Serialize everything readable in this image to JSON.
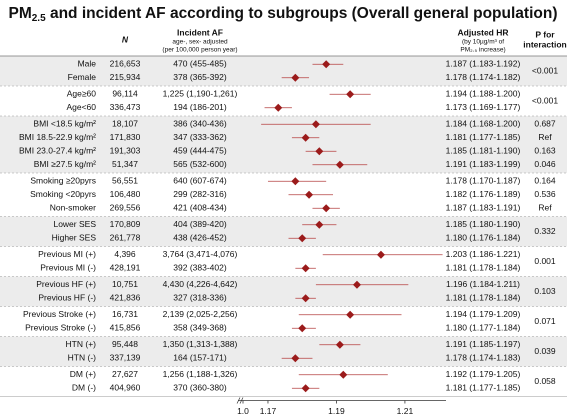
{
  "chart_data": {
    "type": "forest",
    "title_main": "PM",
    "title_sub": "2.5",
    "title_rest": " and incident AF according to subgroups (Overall general population)",
    "col_n": "N",
    "col_af": "Incident AF",
    "col_af_sub1": "age-, sex- adjusted",
    "col_af_sub2": "(per 100,000 person year)",
    "col_hr": "Adjusted HR",
    "col_hr_sub1": "(by 10µg/m³ of",
    "col_hr_sub2": "PM₂.₅ increase)",
    "col_p1": "P for",
    "col_p2": "interaction",
    "marker_color": "#9b1b1b",
    "ci_color": "#b54040",
    "shade_color": "#ececec",
    "xlim": [
      1.163,
      1.222
    ],
    "xticks": [
      {
        "value": 1.0,
        "label": "1.0"
      },
      1.17,
      1.19,
      1.21
    ],
    "groups": [
      {
        "p": "<0.001",
        "rows": [
          {
            "label": "Male",
            "n": "216,653",
            "af": "470 (455-485)",
            "hr_label": "1.187 (1.183-1.192)",
            "hr": 1.187,
            "lo": 1.183,
            "hi": 1.192
          },
          {
            "label": "Female",
            "n": "215,934",
            "af": "378 (365-392)",
            "hr_label": "1.178 (1.174-1.182)",
            "hr": 1.178,
            "lo": 1.174,
            "hi": 1.182
          }
        ]
      },
      {
        "p": "<0.001",
        "rows": [
          {
            "label": "Age≥60",
            "n": "96,114",
            "af": "1,225 (1,190-1,261)",
            "hr_label": "1.194 (1.188-1.200)",
            "hr": 1.194,
            "lo": 1.188,
            "hi": 1.2
          },
          {
            "label": "Age<60",
            "n": "336,473",
            "af": "194 (186-201)",
            "hr_label": "1.173 (1.169-1.177)",
            "hr": 1.173,
            "lo": 1.169,
            "hi": 1.177
          }
        ]
      },
      {
        "rows": [
          {
            "label": "BMI <18.5 kg/m²",
            "n": "18,107",
            "af": "386 (340-436)",
            "hr_label": "1.184 (1.168-1.200)",
            "hr": 1.184,
            "lo": 1.168,
            "hi": 1.2,
            "p": "0.687"
          },
          {
            "label": "BMI 18.5-22.9 kg/m²",
            "n": "171,830",
            "af": "347 (333-362)",
            "hr_label": "1.181 (1.177-1.185)",
            "hr": 1.181,
            "lo": 1.177,
            "hi": 1.185,
            "p": "Ref"
          },
          {
            "label": "BMI 23.0-27.4 kg/m²",
            "n": "191,303",
            "af": "459 (444-475)",
            "hr_label": "1.185 (1.181-1.190)",
            "hr": 1.185,
            "lo": 1.181,
            "hi": 1.19,
            "p": "0.163"
          },
          {
            "label": "BMI ≥27.5 kg/m²",
            "n": "51,347",
            "af": "565 (532-600)",
            "hr_label": "1.191 (1.183-1.199)",
            "hr": 1.191,
            "lo": 1.183,
            "hi": 1.199,
            "p": "0.046"
          }
        ]
      },
      {
        "rows": [
          {
            "label": "Smoking ≥20pyrs",
            "n": "56,551",
            "af": "640 (607-674)",
            "hr_label": "1.178 (1.170-1.187)",
            "hr": 1.178,
            "lo": 1.17,
            "hi": 1.187,
            "p": "0.164"
          },
          {
            "label": "Smoking <20pyrs",
            "n": "106,480",
            "af": "299 (282-316)",
            "hr_label": "1.182 (1.176-1.189)",
            "hr": 1.182,
            "lo": 1.176,
            "hi": 1.189,
            "p": "0.536"
          },
          {
            "label": "Non-smoker",
            "n": "269,556",
            "af": "421 (408-434)",
            "hr_label": "1.187 (1.183-1.191)",
            "hr": 1.187,
            "lo": 1.183,
            "hi": 1.191,
            "p": "Ref"
          }
        ]
      },
      {
        "p": "0.332",
        "rows": [
          {
            "label": "Lower SES",
            "n": "170,809",
            "af": "404 (389-420)",
            "hr_label": "1.185 (1.180-1.190)",
            "hr": 1.185,
            "lo": 1.18,
            "hi": 1.19
          },
          {
            "label": "Higher SES",
            "n": "261,778",
            "af": "438 (426-452)",
            "hr_label": "1.180 (1.176-1.184)",
            "hr": 1.18,
            "lo": 1.176,
            "hi": 1.184
          }
        ]
      },
      {
        "p": "0.001",
        "rows": [
          {
            "label": "Previous MI (+)",
            "n": "4,396",
            "af": "3,764 (3,471-4,076)",
            "hr_label": "1.203 (1.186-1.221)",
            "hr": 1.203,
            "lo": 1.186,
            "hi": 1.221
          },
          {
            "label": "Previous MI (-)",
            "n": "428,191",
            "af": "392 (383-402)",
            "hr_label": "1.181 (1.178-1.184)",
            "hr": 1.181,
            "lo": 1.178,
            "hi": 1.184
          }
        ]
      },
      {
        "p": "0.103",
        "rows": [
          {
            "label": "Previous HF (+)",
            "n": "10,751",
            "af": "4,430 (4,226-4,642)",
            "hr_label": "1.196 (1.184-1.211)",
            "hr": 1.196,
            "lo": 1.184,
            "hi": 1.211
          },
          {
            "label": "Previous HF (-)",
            "n": "421,836",
            "af": "327 (318-336)",
            "hr_label": "1.181 (1.178-1.184)",
            "hr": 1.181,
            "lo": 1.178,
            "hi": 1.184
          }
        ]
      },
      {
        "p": "0.071",
        "rows": [
          {
            "label": "Previous Stroke (+)",
            "n": "16,731",
            "af": "2,139 (2,025-2,256)",
            "hr_label": "1.194 (1.179-1.209)",
            "hr": 1.194,
            "lo": 1.179,
            "hi": 1.209
          },
          {
            "label": "Previous Stroke (-)",
            "n": "415,856",
            "af": "358 (349-368)",
            "hr_label": "1.180 (1.177-1.184)",
            "hr": 1.18,
            "lo": 1.177,
            "hi": 1.184
          }
        ]
      },
      {
        "p": "0.039",
        "rows": [
          {
            "label": "HTN (+)",
            "n": "95,448",
            "af": "1,350 (1,313-1,388)",
            "hr_label": "1.191 (1.185-1.197)",
            "hr": 1.191,
            "lo": 1.185,
            "hi": 1.197
          },
          {
            "label": "HTN (-)",
            "n": "337,139",
            "af": "164 (157-171)",
            "hr_label": "1.178 (1.174-1.183)",
            "hr": 1.178,
            "lo": 1.174,
            "hi": 1.183
          }
        ]
      },
      {
        "p": "0.058",
        "rows": [
          {
            "label": "DM (+)",
            "n": "27,627",
            "af": "1,256 (1,188-1,326)",
            "hr_label": "1.192 (1.179-1.205)",
            "hr": 1.192,
            "lo": 1.179,
            "hi": 1.205
          },
          {
            "label": "DM (-)",
            "n": "404,960",
            "af": "370 (360-380)",
            "hr_label": "1.181 (1.177-1.185)",
            "hr": 1.181,
            "lo": 1.177,
            "hi": 1.185
          }
        ]
      }
    ]
  }
}
